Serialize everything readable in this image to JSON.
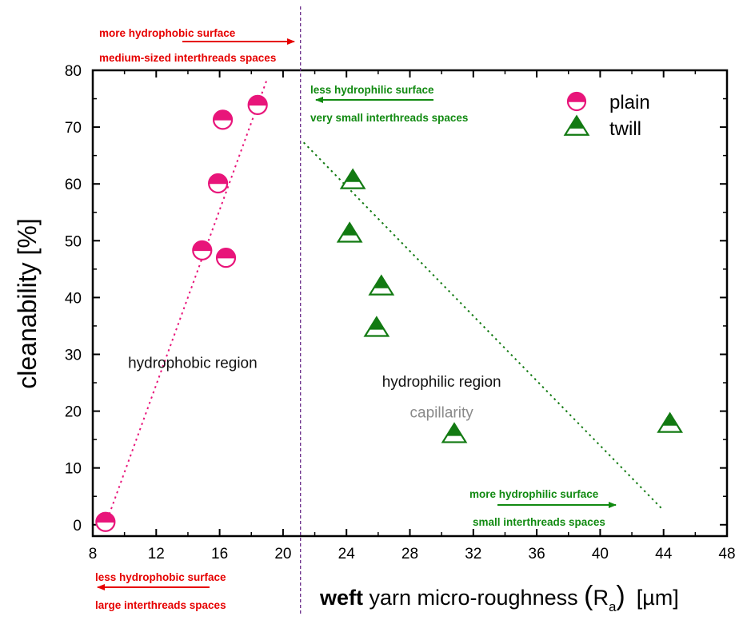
{
  "chart_data": {
    "type": "scatter",
    "title": "",
    "ylabel": "cleanability [%]",
    "xlabel": {
      "bold": "weft",
      "rest": " yarn micro-roughness ",
      "paren_open": "(",
      "symbol": "R",
      "subscript": "a",
      "paren_close": ")",
      "unit": "[µm]"
    },
    "xlim": [
      8,
      48
    ],
    "ylim": [
      -2,
      80
    ],
    "xticks": [
      8,
      12,
      16,
      20,
      24,
      28,
      32,
      36,
      40,
      44,
      48
    ],
    "yticks": [
      0,
      10,
      20,
      30,
      40,
      50,
      60,
      70,
      80
    ],
    "xtick_labels": [
      "8",
      "12",
      "16",
      "20",
      "24",
      "28",
      "32",
      "36",
      "40",
      "44",
      "48"
    ],
    "ytick_labels": [
      "0",
      "10",
      "20",
      "30",
      "40",
      "50",
      "60",
      "70",
      "80"
    ],
    "grid": false,
    "legend_position": "top-right",
    "series": [
      {
        "name": "plain",
        "marker": "circle-half-filled",
        "color": "#e8157a",
        "points": [
          {
            "x": 8.8,
            "y": 0.5
          },
          {
            "x": 14.9,
            "y": 48.3
          },
          {
            "x": 15.9,
            "y": 60.1
          },
          {
            "x": 16.2,
            "y": 71.3
          },
          {
            "x": 16.4,
            "y": 47.0
          },
          {
            "x": 18.4,
            "y": 73.9
          }
        ]
      },
      {
        "name": "twill",
        "marker": "triangle-half-filled",
        "color": "#127a12",
        "points": [
          {
            "x": 24.2,
            "y": 51.2
          },
          {
            "x": 24.4,
            "y": 60.6
          },
          {
            "x": 25.9,
            "y": 34.6
          },
          {
            "x": 26.2,
            "y": 41.9
          },
          {
            "x": 30.8,
            "y": 15.9
          },
          {
            "x": 44.4,
            "y": 17.7
          }
        ]
      }
    ],
    "trend_lines": [
      {
        "series": "plain",
        "style": "dotted",
        "color": "#e8157a",
        "from": {
          "x": 8.8,
          "y": 0
        },
        "to": {
          "x": 19.0,
          "y": 78.5
        }
      },
      {
        "series": "twill",
        "style": "dotted",
        "color": "#127a12",
        "from": {
          "x": 21.3,
          "y": 67.3
        },
        "to": {
          "x": 43.9,
          "y": 2.8
        }
      }
    ],
    "divider": {
      "x": 21.1,
      "style": "dashed",
      "color": "#6a2c8a"
    },
    "regions": [
      {
        "text": "hydrophobic region",
        "x": 14.3,
        "y": 27.6
      },
      {
        "text": "hydrophilic region",
        "x": 30.0,
        "y": 24.3
      },
      {
        "text": "capillarity",
        "x": 30.0,
        "y": 18.9,
        "color": "#8a8a8a"
      }
    ],
    "annotations": [
      {
        "lines": [
          "more hydrophobic surface",
          "medium-sized interthreads spaces"
        ],
        "color": "#e60000",
        "arrow": "right"
      },
      {
        "lines": [
          "less hydrophilic surface",
          "very small interthreads spaces"
        ],
        "color": "#118a11",
        "arrow": "left"
      },
      {
        "lines": [
          "more hydrophilic surface",
          "small interthreads spaces"
        ],
        "color": "#118a11",
        "arrow": "right"
      },
      {
        "lines": [
          "less hydrophobic surface",
          "large interthreads spaces"
        ],
        "color": "#e60000",
        "arrow": "left"
      }
    ]
  }
}
